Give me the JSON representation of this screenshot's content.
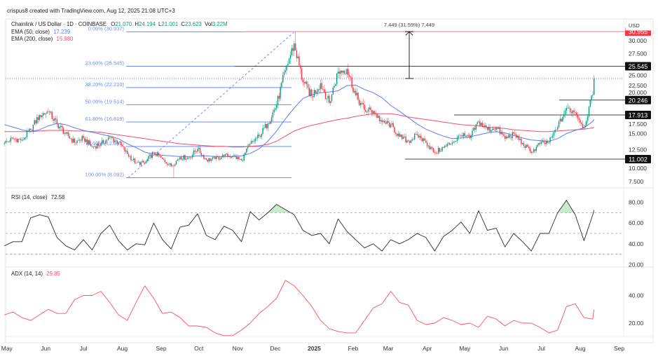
{
  "attribution": "crispus8 created with TradingView.com, Aug 12, 2025 21:08 UTC+3",
  "legend": {
    "symbol": "Chainlink / US Dollar · 1D · COINBASE",
    "o_label": "O",
    "o": "21.070",
    "h_label": "H",
    "h": "24.194",
    "l_label": "L",
    "l": "21.001",
    "c_label": "C",
    "c": "23.623",
    "vol_label": "Vol",
    "vol": "3.22M",
    "ema50_label": "EMA (50, close)",
    "ema50": "17.239",
    "ema200_label": "EMA (200, close)",
    "ema200": "15.980",
    "rsi_label": "RSI (14, close)",
    "rsi": "72.58",
    "adx_label": "ADX (14, 14)",
    "adx": "29.85"
  },
  "colors": {
    "up": "#089981",
    "down": "#f23645",
    "ema50": "#5c7cfa",
    "ema200": "#f0506e",
    "fib": "#6b8cf2",
    "rsi": "#2a2a2a",
    "adx": "#f7525f",
    "level": "#444444",
    "high_label": "#f23645"
  },
  "currency": "USD",
  "measure_label": "7.449 (31.59%) 7,449",
  "fib_levels": [
    {
      "label": "0.00% (30.937)",
      "price": 30.937
    },
    {
      "label": "23.60% (25.545)",
      "price": 25.545
    },
    {
      "label": "38.20% (22.210)",
      "price": 22.21
    },
    {
      "label": "50.00% (19.514)",
      "price": 19.514
    },
    {
      "label": "61.80% (16.819)",
      "price": 16.819
    },
    {
      "label": "78.60% (12.981)",
      "price": 12.981
    },
    {
      "label": "100.00% (8.092)",
      "price": 8.092
    }
  ],
  "price_levels": [
    {
      "label": "30.955",
      "price": 30.955,
      "highlight": true
    },
    {
      "label": "25.545",
      "price": 25.545
    },
    {
      "label": "20.246",
      "price": 20.246
    },
    {
      "label": "17.913",
      "price": 17.913
    },
    {
      "label": "11.002",
      "price": 11.002
    }
  ],
  "chart_data": {
    "type": "candlestick",
    "xlim": [
      "2024-04-30",
      "2025-09-13"
    ],
    "x_ticks": [
      {
        "label": "May",
        "date": "2024-05-01"
      },
      {
        "label": "Jun",
        "date": "2024-06-01"
      },
      {
        "label": "Jul",
        "date": "2024-07-01"
      },
      {
        "label": "Aug",
        "date": "2024-08-01"
      },
      {
        "label": "Sep",
        "date": "2024-09-01"
      },
      {
        "label": "Oct",
        "date": "2024-10-01"
      },
      {
        "label": "Nov",
        "date": "2024-11-01"
      },
      {
        "label": "Dec",
        "date": "2024-12-01"
      },
      {
        "label": "2025",
        "date": "2025-01-01",
        "bold": true
      },
      {
        "label": "Feb",
        "date": "2025-02-01"
      },
      {
        "label": "Mar",
        "date": "2025-03-01"
      },
      {
        "label": "Apr",
        "date": "2025-04-01"
      },
      {
        "label": "May",
        "date": "2025-05-01"
      },
      {
        "label": "Jun",
        "date": "2025-06-01"
      },
      {
        "label": "Jul",
        "date": "2025-07-01"
      },
      {
        "label": "Aug",
        "date": "2025-08-01"
      },
      {
        "label": "Sep",
        "date": "2025-09-01"
      }
    ],
    "price_pane": {
      "ylim": [
        6.5,
        32.95
      ],
      "y_ticks": [
        "7.500",
        "10.000",
        "12.500",
        "15.000",
        "17.500",
        "20.000",
        "22.500",
        "25.000",
        "27.500",
        "30.000"
      ]
    },
    "rsi_pane": {
      "ylim": [
        17.5,
        94
      ],
      "y_ticks": [
        "20.00",
        "40.00",
        "60.00",
        "80.00"
      ],
      "bands": [
        30,
        50,
        70
      ]
    },
    "adx_pane": {
      "ylim": [
        10.4,
        60.5
      ],
      "y_ticks": [
        "20.00",
        "40.00"
      ]
    },
    "dates": [
      "2024-04-29",
      "2024-05-06",
      "2024-05-13",
      "2024-05-20",
      "2024-05-27",
      "2024-06-03",
      "2024-06-10",
      "2024-06-17",
      "2024-06-24",
      "2024-07-01",
      "2024-07-08",
      "2024-07-15",
      "2024-07-22",
      "2024-07-29",
      "2024-08-05",
      "2024-08-12",
      "2024-08-19",
      "2024-08-26",
      "2024-09-02",
      "2024-09-09",
      "2024-09-16",
      "2024-09-23",
      "2024-09-30",
      "2024-10-07",
      "2024-10-14",
      "2024-10-21",
      "2024-10-28",
      "2024-11-04",
      "2024-11-11",
      "2024-11-18",
      "2024-11-25",
      "2024-12-02",
      "2024-12-09",
      "2024-12-16",
      "2024-12-23",
      "2024-12-30",
      "2025-01-06",
      "2025-01-13",
      "2025-01-20",
      "2025-01-27",
      "2025-02-03",
      "2025-02-10",
      "2025-02-17",
      "2025-02-24",
      "2025-03-03",
      "2025-03-10",
      "2025-03-17",
      "2025-03-24",
      "2025-03-31",
      "2025-04-07",
      "2025-04-14",
      "2025-04-21",
      "2025-04-28",
      "2025-05-05",
      "2025-05-12",
      "2025-05-19",
      "2025-05-26",
      "2025-06-02",
      "2025-06-09",
      "2025-06-16",
      "2025-06-23",
      "2025-06-30",
      "2025-07-07",
      "2025-07-14",
      "2025-07-21",
      "2025-07-28",
      "2025-08-04",
      "2025-08-11",
      "2025-08-12"
    ],
    "close": [
      13.5,
      14.2,
      14.0,
      15.6,
      17.9,
      18.4,
      16.5,
      15.0,
      13.6,
      14.3,
      12.9,
      13.4,
      14.4,
      13.6,
      11.8,
      10.4,
      10.4,
      12.1,
      11.0,
      9.9,
      11.3,
      11.2,
      12.6,
      10.9,
      11.0,
      11.5,
      11.5,
      10.8,
      13.4,
      14.6,
      16.6,
      19.5,
      24.9,
      29.1,
      23.0,
      20.9,
      22.9,
      19.8,
      24.7,
      25.1,
      21.0,
      18.7,
      18.5,
      16.8,
      16.4,
      14.5,
      13.8,
      14.8,
      13.6,
      12.0,
      12.8,
      13.6,
      14.7,
      14.3,
      16.9,
      15.6,
      16.0,
      14.2,
      15.0,
      13.5,
      12.0,
      13.4,
      13.6,
      16.0,
      19.0,
      18.3,
      16.0,
      21.07,
      23.623
    ],
    "ema50": [
      16.4,
      16.0,
      15.6,
      15.3,
      15.6,
      16.2,
      16.6,
      16.4,
      15.9,
      15.5,
      15.2,
      14.9,
      14.6,
      14.2,
      13.4,
      12.8,
      12.1,
      11.8,
      11.6,
      11.5,
      11.4,
      11.4,
      11.5,
      11.5,
      11.4,
      11.4,
      11.4,
      11.5,
      11.9,
      12.6,
      13.8,
      15.4,
      17.3,
      19.0,
      20.5,
      21.1,
      21.4,
      21.5,
      21.7,
      22.5,
      22.6,
      21.9,
      21.4,
      20.6,
      19.4,
      18.5,
      17.5,
      16.5,
      15.7,
      15.1,
      14.6,
      14.2,
      14.3,
      14.5,
      14.8,
      15.1,
      15.3,
      15.1,
      14.7,
      14.3,
      14.0,
      13.9,
      13.8,
      14.2,
      15.0,
      15.5,
      15.9,
      16.9,
      17.239
    ],
    "ema200": [
      15.3,
      15.3,
      15.3,
      15.3,
      15.4,
      15.5,
      15.5,
      15.5,
      15.4,
      15.4,
      15.3,
      15.2,
      15.0,
      14.8,
      14.6,
      14.4,
      14.2,
      14.0,
      13.8,
      13.6,
      13.4,
      13.3,
      13.2,
      13.1,
      13.0,
      13.0,
      12.9,
      12.9,
      13.0,
      13.1,
      13.3,
      13.8,
      14.6,
      15.4,
      15.9,
      16.3,
      16.6,
      16.9,
      17.2,
      17.4,
      17.7,
      17.9,
      18.1,
      18.1,
      18.1,
      17.9,
      17.6,
      17.4,
      17.2,
      17.0,
      16.8,
      16.6,
      16.4,
      16.3,
      16.2,
      16.0,
      15.9,
      15.8,
      15.6,
      15.5,
      15.4,
      15.3,
      15.3,
      15.4,
      15.5,
      15.6,
      15.7,
      15.9,
      15.98
    ],
    "rsi": [
      38,
      42,
      42,
      65,
      68,
      66,
      46,
      38,
      34,
      44,
      34,
      50,
      58,
      43,
      34,
      40,
      39,
      60,
      44,
      35,
      56,
      58,
      69,
      48,
      44,
      57,
      53,
      42,
      71,
      63,
      70,
      78,
      73,
      68,
      53,
      48,
      50,
      40,
      64,
      52,
      44,
      36,
      40,
      33,
      44,
      40,
      44,
      50,
      46,
      33,
      47,
      53,
      61,
      50,
      72,
      53,
      55,
      37,
      50,
      42,
      33,
      50,
      50,
      70,
      82,
      68,
      43,
      68,
      72.58
    ],
    "adx": [
      26,
      28,
      24,
      22,
      26,
      30,
      27,
      27,
      37,
      40,
      40,
      43,
      35,
      26,
      22,
      35,
      47,
      38,
      27,
      28,
      24,
      18,
      18,
      17,
      13,
      11,
      11,
      15,
      20,
      27,
      32,
      38,
      51,
      47,
      40,
      32,
      22,
      16,
      14,
      13,
      13,
      22,
      31,
      34,
      43,
      35,
      33,
      22,
      19,
      20,
      24,
      22,
      19,
      20,
      17,
      25,
      23,
      18,
      22,
      20,
      20,
      17,
      13,
      15,
      32,
      34,
      24,
      23,
      29.85
    ]
  }
}
